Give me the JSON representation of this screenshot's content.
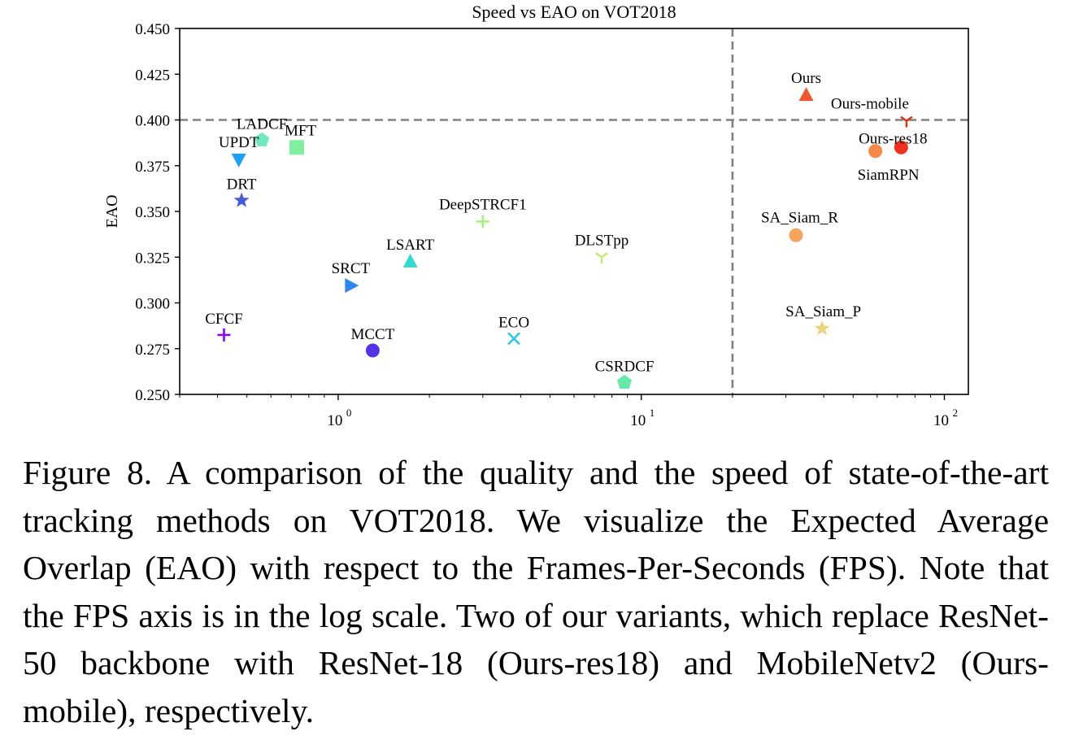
{
  "figure": {
    "caption": "Figure 8. A comparison of the quality and the speed of state-of-the-art tracking methods on VOT2018. We visualize the Expected Average Overlap (EAO) with respect to the Frames-Per-Seconds (FPS). Note that the FPS axis is in the log scale. Two of our variants, which replace ResNet-50 backbone with ResNet-18 (Ours-res18) and MobileNetv2 (Ours-mobile), respectively."
  },
  "chart_data": {
    "type": "scatter",
    "title": "Speed vs EAO on VOT2018",
    "xlabel": "",
    "ylabel": "EAO",
    "xscale": "log",
    "xlim": [
      0.3,
      120
    ],
    "ylim": [
      0.25,
      0.45
    ],
    "x_ticks": [
      {
        "value": 1,
        "label": "10",
        "exp": "0"
      },
      {
        "value": 10,
        "label": "10",
        "exp": "1"
      },
      {
        "value": 100,
        "label": "10",
        "exp": "2"
      }
    ],
    "y_ticks": [
      "0.250",
      "0.275",
      "0.300",
      "0.325",
      "0.350",
      "0.375",
      "0.400",
      "0.425",
      "0.450"
    ],
    "reference_lines": [
      {
        "axis": "y",
        "value": 0.4,
        "style": "dashed",
        "color": "#808080"
      },
      {
        "axis": "x",
        "value": 20,
        "style": "dashed",
        "color": "#808080"
      }
    ],
    "points": [
      {
        "name": "CFCF",
        "x": 0.42,
        "y": 0.2825,
        "marker": "plus",
        "color": "#8b00ff"
      },
      {
        "name": "UPDT",
        "x": 0.47,
        "y": 0.3785,
        "marker": "triangle-down",
        "color": "#1e9ff0"
      },
      {
        "name": "DRT",
        "x": 0.48,
        "y": 0.356,
        "marker": "star",
        "color": "#4a5ae0"
      },
      {
        "name": "LADCF",
        "x": 0.56,
        "y": 0.389,
        "marker": "pentagon",
        "color": "#6fe8c0"
      },
      {
        "name": "MFT",
        "x": 0.73,
        "y": 0.385,
        "marker": "square",
        "color": "#80f0a0"
      },
      {
        "name": "SRCT",
        "x": 1.1,
        "y": 0.3095,
        "marker": "triangle-right",
        "color": "#2e86f0"
      },
      {
        "name": "MCCT",
        "x": 1.3,
        "y": 0.274,
        "marker": "circle",
        "color": "#5533e8"
      },
      {
        "name": "LSART",
        "x": 1.73,
        "y": 0.3225,
        "marker": "triangle-up",
        "color": "#33d8d0"
      },
      {
        "name": "DeepSTRCF1",
        "x": 3.0,
        "y": 0.3445,
        "marker": "plus",
        "color": "#a8f080"
      },
      {
        "name": "ECO",
        "x": 3.8,
        "y": 0.2805,
        "marker": "x",
        "color": "#2cc8e8"
      },
      {
        "name": "DLSTpp",
        "x": 7.4,
        "y": 0.325,
        "marker": "tri-down",
        "color": "#c0ea70"
      },
      {
        "name": "CSRDCF",
        "x": 8.8,
        "y": 0.2565,
        "marker": "pentagon",
        "color": "#66e8a8"
      },
      {
        "name": "SA_Siam_R",
        "x": 32.4,
        "y": 0.337,
        "marker": "circle",
        "color": "#f6a45c"
      },
      {
        "name": "SA_Siam_P",
        "x": 39.5,
        "y": 0.286,
        "marker": "star",
        "color": "#ead37c"
      },
      {
        "name": "Ours",
        "x": 35.0,
        "y": 0.4135,
        "marker": "triangle-up",
        "color": "#f05530"
      },
      {
        "name": "SiamRPN",
        "x": 59.2,
        "y": 0.383,
        "marker": "circle",
        "color": "#f48948"
      },
      {
        "name": "Ours-res18",
        "x": 72.0,
        "y": 0.385,
        "marker": "circle",
        "color": "#f03020"
      },
      {
        "name": "Ours-mobile",
        "x": 75.0,
        "y": 0.3995,
        "marker": "tri-down",
        "color": "#e03018"
      }
    ],
    "labels": [
      {
        "text": "CFCF",
        "x": 0.42,
        "y": 0.2825,
        "align": "middle",
        "dy": -14
      },
      {
        "text": "UPDT",
        "x": 0.47,
        "y": 0.3785,
        "align": "middle",
        "dy": -15
      },
      {
        "text": "DRT",
        "x": 0.48,
        "y": 0.356,
        "align": "middle",
        "dy": -14
      },
      {
        "text": "LADCF",
        "x": 0.56,
        "y": 0.389,
        "align": "middle",
        "dy": -14
      },
      {
        "text": "MFT",
        "x": 0.73,
        "y": 0.385,
        "align": "start",
        "dx": -15,
        "dy": -15
      },
      {
        "text": "SRCT",
        "x": 1.1,
        "y": 0.3095,
        "align": "middle",
        "dy": -15
      },
      {
        "text": "MCCT",
        "x": 1.3,
        "y": 0.274,
        "align": "middle",
        "dy": -14
      },
      {
        "text": "LSART",
        "x": 1.73,
        "y": 0.3225,
        "align": "middle",
        "dy": -15
      },
      {
        "text": "DeepSTRCF1",
        "x": 3.0,
        "y": 0.3445,
        "align": "middle",
        "dy": -15
      },
      {
        "text": "ECO",
        "x": 3.8,
        "y": 0.2805,
        "align": "middle",
        "dy": -14
      },
      {
        "text": "DLSTpp",
        "x": 7.4,
        "y": 0.325,
        "align": "middle",
        "dy": -15
      },
      {
        "text": "CSRDCF",
        "x": 8.8,
        "y": 0.2565,
        "align": "middle",
        "dy": -14
      },
      {
        "text": "SA_Siam_R",
        "x": 32.4,
        "y": 0.337,
        "align": "end",
        "dx": 52,
        "dy": -16
      },
      {
        "text": "SA_Siam_P",
        "x": 39.5,
        "y": 0.286,
        "align": "end",
        "dx": 48,
        "dy": -15
      },
      {
        "text": "Ours",
        "x": 35.0,
        "y": 0.4135,
        "align": "middle",
        "dy": -15
      },
      {
        "text": "SiamRPN",
        "x": 59.2,
        "y": 0.383,
        "align": "middle",
        "dx": 16,
        "dy": 35
      },
      {
        "text": "Ours-res18",
        "x": 72.0,
        "y": 0.385,
        "align": "middle",
        "dx": -10,
        "dy": -5
      },
      {
        "text": "Ours-mobile",
        "x": 75.0,
        "y": 0.3995,
        "align": "end",
        "dx": 3,
        "dy": -15
      }
    ]
  }
}
